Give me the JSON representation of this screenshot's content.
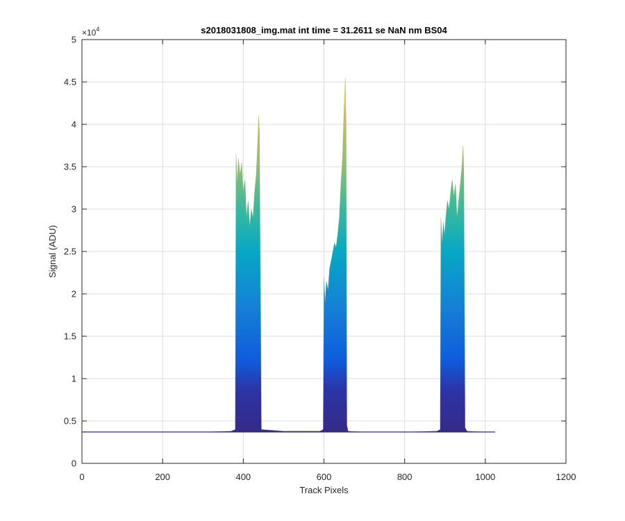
{
  "chart_data": {
    "type": "area",
    "title": "s2018031808_img.mat int time = 31.2611 se  NaN nm BS04",
    "xlabel": "Track Pixels",
    "ylabel": "Signal (ADU)",
    "xlim": [
      0,
      1200
    ],
    "ylim": [
      0,
      5
    ],
    "y_multiplier": "×10",
    "y_multiplier_exp": "4",
    "grid": true,
    "colormap": "parula",
    "xticks": [
      0,
      200,
      400,
      600,
      800,
      1000,
      1200
    ],
    "xtick_labels": [
      "0",
      "200",
      "400",
      "600",
      "800",
      "1000",
      "1200"
    ],
    "yticks": [
      0,
      0.5,
      1,
      1.5,
      2,
      2.5,
      3,
      3.5,
      4,
      4.5,
      5
    ],
    "ytick_labels": [
      "0",
      "0.5",
      "1",
      "1.5",
      "2",
      "2.5",
      "3",
      "3.5",
      "4",
      "4.5",
      "5"
    ],
    "baseline": 0.37,
    "series": [
      {
        "x": [
          1,
          100,
          200,
          300,
          370,
          380,
          382,
          385,
          388,
          392,
          396,
          400,
          404,
          408,
          412,
          416,
          420,
          424,
          428,
          432,
          436,
          438,
          440,
          445,
          500,
          590,
          598,
          600,
          603,
          606,
          610,
          614,
          618,
          622,
          626,
          630,
          634,
          638,
          642,
          646,
          650,
          653,
          655,
          657,
          660,
          700,
          800,
          880,
          888,
          890,
          893,
          896,
          899,
          902,
          906,
          910,
          914,
          918,
          922,
          926,
          930,
          934,
          938,
          942,
          945,
          947,
          950,
          955,
          1000,
          1024
        ],
        "y": [
          0.37,
          0.37,
          0.37,
          0.37,
          0.38,
          0.4,
          3.65,
          3.3,
          3.6,
          3.4,
          3.55,
          3.2,
          3.35,
          2.9,
          3.1,
          2.8,
          3.0,
          2.9,
          3.2,
          3.4,
          3.8,
          4.1,
          3.9,
          0.4,
          0.38,
          0.38,
          0.4,
          2.2,
          1.9,
          2.15,
          2.05,
          2.3,
          2.4,
          2.5,
          2.6,
          2.55,
          2.7,
          2.9,
          3.3,
          3.6,
          4.2,
          4.55,
          4.0,
          0.45,
          0.38,
          0.37,
          0.37,
          0.38,
          0.4,
          2.9,
          2.6,
          2.85,
          2.7,
          2.9,
          3.1,
          3.0,
          3.2,
          3.35,
          3.15,
          3.3,
          2.9,
          3.1,
          3.3,
          3.5,
          3.75,
          3.4,
          0.42,
          0.38,
          0.37,
          0.37
        ]
      }
    ]
  }
}
